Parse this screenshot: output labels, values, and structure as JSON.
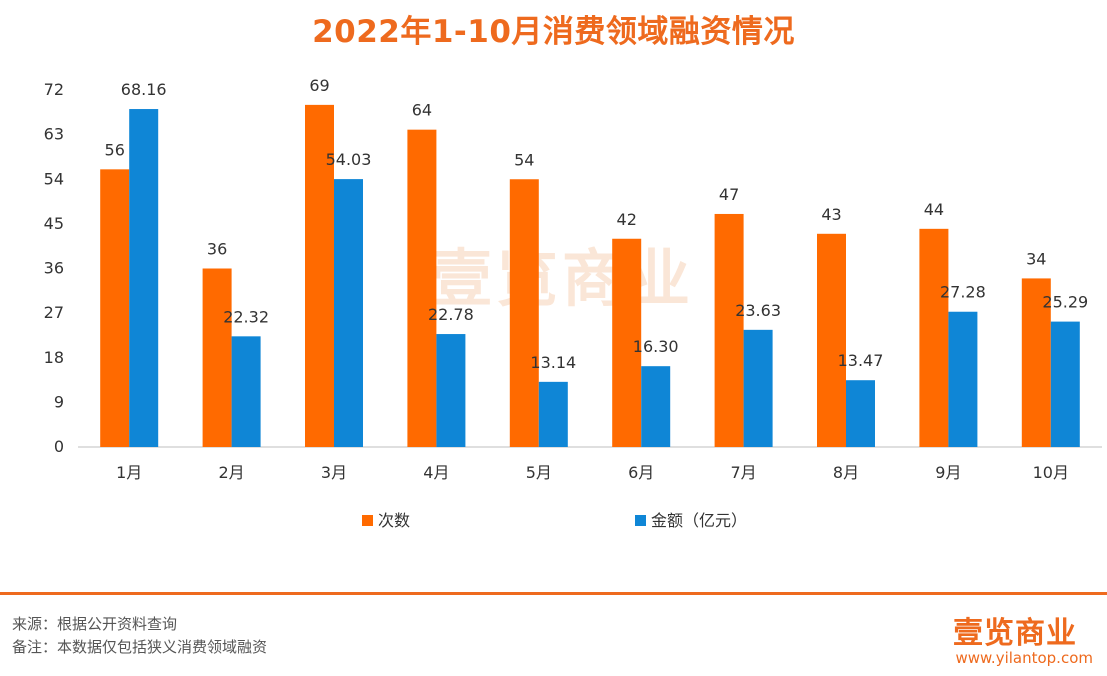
{
  "title": "2022年1-10月消费领域融资情况",
  "watermark": "壹览商业",
  "colors": {
    "series1": "#ff6a00",
    "series2": "#0f86d6",
    "accent": "#ee6a1e"
  },
  "footer": {
    "source": "来源：根据公开资料查询",
    "note": "备注：本数据仅包括狭义消费领域融资",
    "logo": "壹览商业",
    "url": "www.yilantop.com"
  },
  "chart_data": {
    "type": "bar",
    "title": "2022年1-10月消费领域融资情况",
    "categories": [
      "1月",
      "2月",
      "3月",
      "4月",
      "5月",
      "6月",
      "7月",
      "8月",
      "9月",
      "10月"
    ],
    "series": [
      {
        "name": "次数",
        "values": [
          56,
          36,
          69,
          64,
          54,
          42,
          47,
          43,
          44,
          34
        ],
        "labels": [
          "56",
          "36",
          "69",
          "64",
          "54",
          "42",
          "47",
          "43",
          "44",
          "34"
        ]
      },
      {
        "name": "金额（亿元）",
        "values": [
          68.16,
          22.32,
          54.03,
          22.78,
          13.14,
          16.3,
          23.63,
          13.47,
          27.28,
          25.29
        ],
        "labels": [
          "68.16",
          "22.32",
          "54.03",
          "22.78",
          "13.14",
          "16.30",
          "23.63",
          "13.47",
          "27.28",
          "25.29"
        ]
      }
    ],
    "yticks": [
      "0",
      "9",
      "18",
      "27",
      "36",
      "45",
      "54",
      "63",
      "72"
    ],
    "ylim": [
      0,
      72
    ],
    "grid": false,
    "legend_position": "bottom"
  }
}
